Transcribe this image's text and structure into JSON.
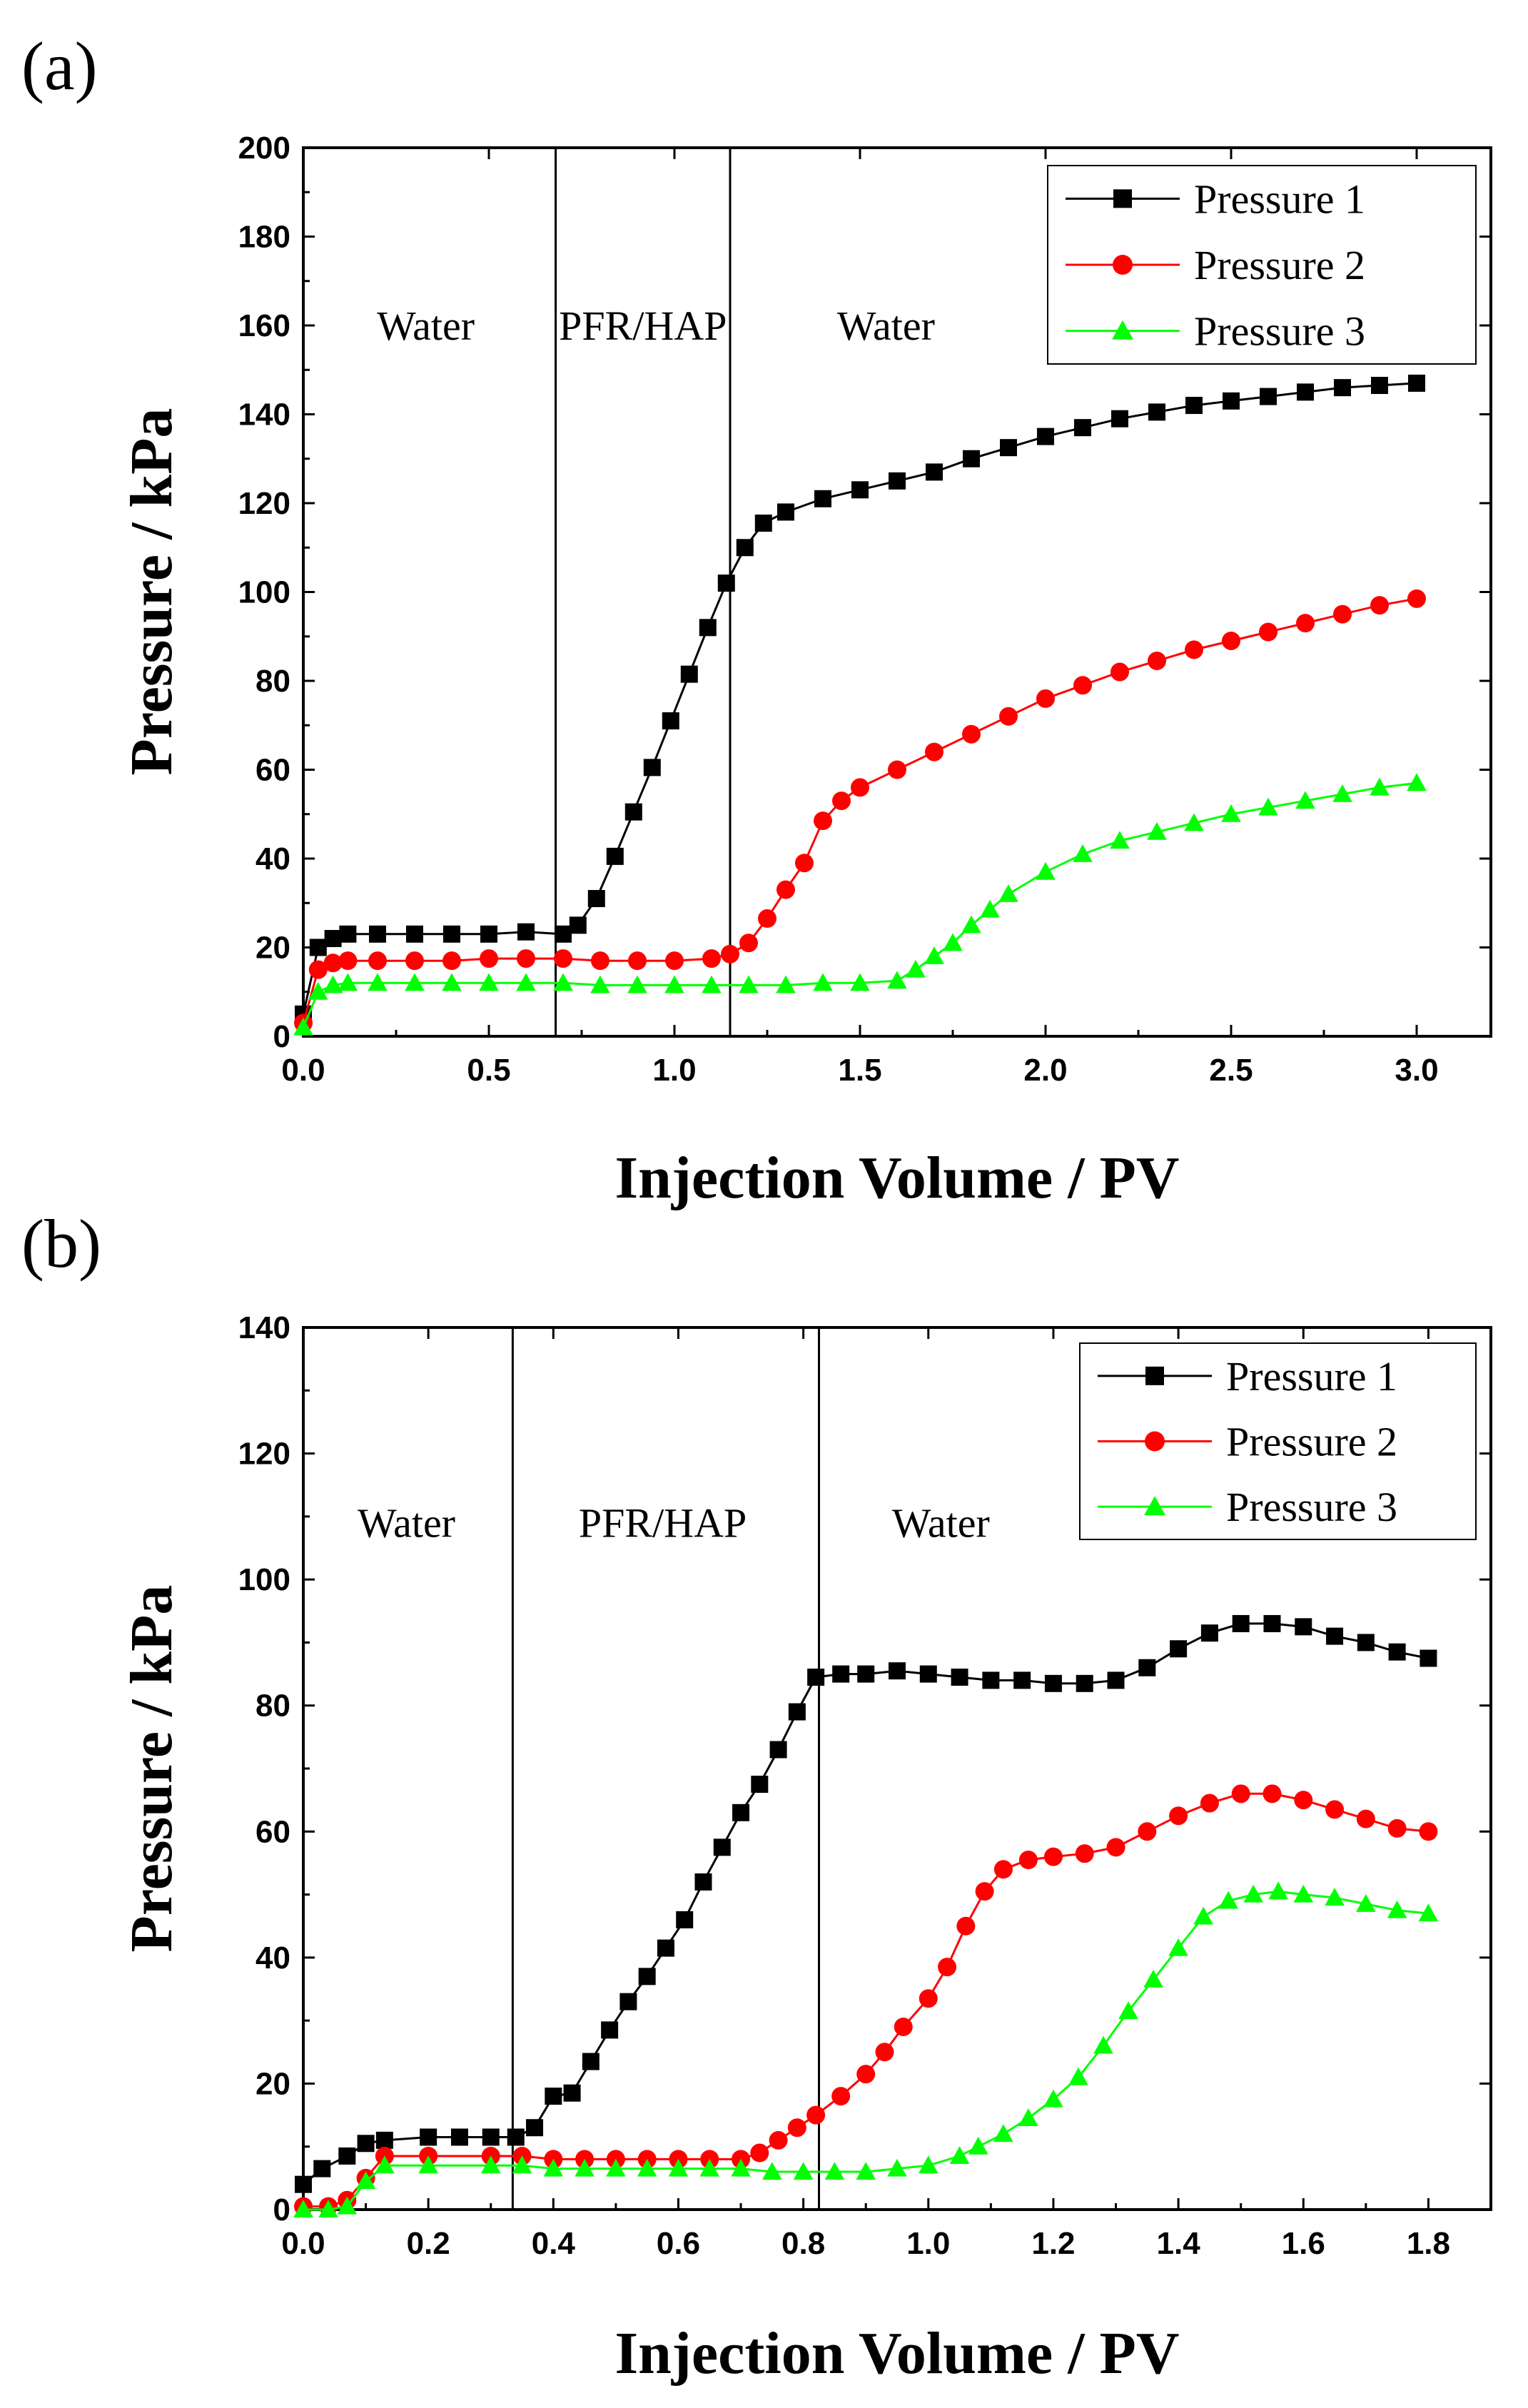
{
  "chart_data": [
    {
      "type": "line",
      "panel_label": "(a)",
      "xlabel": "Injection Volume / PV",
      "ylabel": "Pressure / kPa",
      "xlim": [
        0,
        3.2
      ],
      "ylim": [
        0,
        200
      ],
      "xticks": [
        0.0,
        0.5,
        1.0,
        1.5,
        2.0,
        2.5,
        3.0
      ],
      "xtick_labels": [
        "0.0",
        "0.5",
        "1.0",
        "1.5",
        "2.0",
        "2.5",
        "3.0"
      ],
      "yticks": [
        0,
        20,
        40,
        60,
        80,
        100,
        120,
        140,
        160,
        180,
        200
      ],
      "ytick_labels": [
        "0",
        "20",
        "40",
        "60",
        "80",
        "100",
        "120",
        "140",
        "160",
        "180",
        "200"
      ],
      "vlines": [
        0.68,
        1.15
      ],
      "regions": [
        {
          "label": "Water",
          "x": 0.33
        },
        {
          "label": "PFR/HAP",
          "x": 0.915
        },
        {
          "label": "Water",
          "x": 1.57
        }
      ],
      "region_label_y": 160,
      "legend_position": "top-right",
      "series": [
        {
          "name": "Pressure 1",
          "color": "#000000",
          "marker": "square",
          "points": [
            [
              0,
              5
            ],
            [
              0.04,
              20
            ],
            [
              0.08,
              22
            ],
            [
              0.12,
              23
            ],
            [
              0.2,
              23
            ],
            [
              0.3,
              23
            ],
            [
              0.4,
              23
            ],
            [
              0.5,
              23
            ],
            [
              0.6,
              23.5
            ],
            [
              0.7,
              23
            ],
            [
              0.74,
              25
            ],
            [
              0.79,
              31
            ],
            [
              0.84,
              40.5
            ],
            [
              0.89,
              50.5
            ],
            [
              0.94,
              60.5
            ],
            [
              0.99,
              71
            ],
            [
              1.04,
              81.5
            ],
            [
              1.09,
              92
            ],
            [
              1.14,
              102
            ],
            [
              1.19,
              110
            ],
            [
              1.24,
              115.5
            ],
            [
              1.3,
              118
            ],
            [
              1.4,
              121
            ],
            [
              1.5,
              123
            ],
            [
              1.6,
              125
            ],
            [
              1.7,
              127
            ],
            [
              1.8,
              130
            ],
            [
              1.9,
              132.5
            ],
            [
              2.0,
              135
            ],
            [
              2.1,
              137
            ],
            [
              2.2,
              139
            ],
            [
              2.3,
              140.5
            ],
            [
              2.4,
              142
            ],
            [
              2.5,
              143
            ],
            [
              2.6,
              144
            ],
            [
              2.7,
              145
            ],
            [
              2.8,
              146
            ],
            [
              2.9,
              146.5
            ],
            [
              3.0,
              147
            ]
          ]
        },
        {
          "name": "Pressure 2",
          "color": "#ff0000",
          "marker": "circle",
          "points": [
            [
              0,
              3
            ],
            [
              0.04,
              15
            ],
            [
              0.08,
              16.5
            ],
            [
              0.12,
              17
            ],
            [
              0.2,
              17
            ],
            [
              0.3,
              17
            ],
            [
              0.4,
              17
            ],
            [
              0.5,
              17.5
            ],
            [
              0.6,
              17.5
            ],
            [
              0.7,
              17.5
            ],
            [
              0.8,
              17
            ],
            [
              0.9,
              17
            ],
            [
              1.0,
              17
            ],
            [
              1.1,
              17.5
            ],
            [
              1.15,
              18.5
            ],
            [
              1.2,
              21
            ],
            [
              1.25,
              26.5
            ],
            [
              1.3,
              33
            ],
            [
              1.35,
              39
            ],
            [
              1.4,
              48.5
            ],
            [
              1.45,
              53
            ],
            [
              1.5,
              56
            ],
            [
              1.6,
              60
            ],
            [
              1.7,
              64
            ],
            [
              1.8,
              68
            ],
            [
              1.9,
              72
            ],
            [
              2.0,
              76
            ],
            [
              2.1,
              79
            ],
            [
              2.2,
              82
            ],
            [
              2.3,
              84.5
            ],
            [
              2.4,
              87
            ],
            [
              2.5,
              89
            ],
            [
              2.6,
              91
            ],
            [
              2.7,
              93
            ],
            [
              2.8,
              95
            ],
            [
              2.9,
              97
            ],
            [
              3.0,
              98.5
            ]
          ]
        },
        {
          "name": "Pressure 3",
          "color": "#00ff00",
          "marker": "triangle",
          "points": [
            [
              0,
              2
            ],
            [
              0.04,
              10
            ],
            [
              0.08,
              11.5
            ],
            [
              0.12,
              12
            ],
            [
              0.2,
              12
            ],
            [
              0.3,
              12
            ],
            [
              0.4,
              12
            ],
            [
              0.5,
              12
            ],
            [
              0.6,
              12
            ],
            [
              0.7,
              12
            ],
            [
              0.8,
              11.5
            ],
            [
              0.9,
              11.5
            ],
            [
              1.0,
              11.5
            ],
            [
              1.1,
              11.5
            ],
            [
              1.2,
              11.5
            ],
            [
              1.3,
              11.5
            ],
            [
              1.4,
              12
            ],
            [
              1.5,
              12
            ],
            [
              1.6,
              12.5
            ],
            [
              1.65,
              15
            ],
            [
              1.7,
              18
            ],
            [
              1.75,
              21
            ],
            [
              1.8,
              25
            ],
            [
              1.85,
              28.5
            ],
            [
              1.9,
              32
            ],
            [
              2.0,
              37
            ],
            [
              2.1,
              41
            ],
            [
              2.2,
              44
            ],
            [
              2.3,
              46
            ],
            [
              2.4,
              48
            ],
            [
              2.5,
              50
            ],
            [
              2.6,
              51.5
            ],
            [
              2.7,
              53
            ],
            [
              2.8,
              54.5
            ],
            [
              2.9,
              56
            ],
            [
              3.0,
              57
            ]
          ]
        }
      ]
    },
    {
      "type": "line",
      "panel_label": "(b)",
      "xlabel": "Injection Volume / PV",
      "ylabel": "Pressure / kPa",
      "xlim": [
        0,
        1.9
      ],
      "ylim": [
        0,
        140
      ],
      "xticks": [
        0.0,
        0.2,
        0.4,
        0.6,
        0.8,
        1.0,
        1.2,
        1.4,
        1.6,
        1.8
      ],
      "xtick_labels": [
        "0.0",
        "0.2",
        "0.4",
        "0.6",
        "0.8",
        "1.0",
        "1.2",
        "1.4",
        "1.6",
        "1.8"
      ],
      "yticks": [
        0,
        20,
        40,
        60,
        80,
        100,
        120,
        140
      ],
      "ytick_labels": [
        "0",
        "20",
        "40",
        "60",
        "80",
        "100",
        "120",
        "140"
      ],
      "vlines": [
        0.335,
        0.825
      ],
      "regions": [
        {
          "label": "Water",
          "x": 0.165
        },
        {
          "label": "PFR/HAP",
          "x": 0.575
        },
        {
          "label": "Water",
          "x": 1.02
        }
      ],
      "region_label_y": 109,
      "legend_position": "top-right",
      "series": [
        {
          "name": "Pressure 1",
          "color": "#000000",
          "marker": "square",
          "points": [
            [
              0,
              4
            ],
            [
              0.03,
              6.5
            ],
            [
              0.07,
              8.5
            ],
            [
              0.1,
              10.5
            ],
            [
              0.13,
              11
            ],
            [
              0.2,
              11.5
            ],
            [
              0.25,
              11.5
            ],
            [
              0.3,
              11.5
            ],
            [
              0.34,
              11.5
            ],
            [
              0.37,
              13
            ],
            [
              0.4,
              18
            ],
            [
              0.43,
              18.5
            ],
            [
              0.46,
              23.5
            ],
            [
              0.49,
              28.5
            ],
            [
              0.52,
              33
            ],
            [
              0.55,
              37
            ],
            [
              0.58,
              41.5
            ],
            [
              0.61,
              46
            ],
            [
              0.64,
              52
            ],
            [
              0.67,
              57.5
            ],
            [
              0.7,
              63
            ],
            [
              0.73,
              67.5
            ],
            [
              0.76,
              73
            ],
            [
              0.79,
              79
            ],
            [
              0.82,
              84.5
            ],
            [
              0.86,
              85
            ],
            [
              0.9,
              85
            ],
            [
              0.95,
              85.5
            ],
            [
              1.0,
              85
            ],
            [
              1.05,
              84.5
            ],
            [
              1.1,
              84
            ],
            [
              1.15,
              84
            ],
            [
              1.2,
              83.5
            ],
            [
              1.25,
              83.5
            ],
            [
              1.3,
              84
            ],
            [
              1.35,
              86
            ],
            [
              1.4,
              89
            ],
            [
              1.45,
              91.5
            ],
            [
              1.5,
              93
            ],
            [
              1.55,
              93
            ],
            [
              1.6,
              92.5
            ],
            [
              1.65,
              91
            ],
            [
              1.7,
              90
            ],
            [
              1.75,
              88.5
            ],
            [
              1.8,
              87.5
            ]
          ]
        },
        {
          "name": "Pressure 2",
          "color": "#ff0000",
          "marker": "circle",
          "points": [
            [
              0,
              0.5
            ],
            [
              0.04,
              0.5
            ],
            [
              0.07,
              1.5
            ],
            [
              0.1,
              5
            ],
            [
              0.13,
              8.5
            ],
            [
              0.2,
              8.5
            ],
            [
              0.3,
              8.5
            ],
            [
              0.35,
              8.5
            ],
            [
              0.4,
              8
            ],
            [
              0.45,
              8
            ],
            [
              0.5,
              8
            ],
            [
              0.55,
              8
            ],
            [
              0.6,
              8
            ],
            [
              0.65,
              8
            ],
            [
              0.7,
              8
            ],
            [
              0.73,
              9
            ],
            [
              0.76,
              11
            ],
            [
              0.79,
              13
            ],
            [
              0.82,
              15
            ],
            [
              0.86,
              18
            ],
            [
              0.9,
              21.5
            ],
            [
              0.93,
              25
            ],
            [
              0.96,
              29
            ],
            [
              1.0,
              33.5
            ],
            [
              1.03,
              38.5
            ],
            [
              1.06,
              45
            ],
            [
              1.09,
              50.5
            ],
            [
              1.12,
              54
            ],
            [
              1.16,
              55.5
            ],
            [
              1.2,
              56
            ],
            [
              1.25,
              56.5
            ],
            [
              1.3,
              57.5
            ],
            [
              1.35,
              60
            ],
            [
              1.4,
              62.5
            ],
            [
              1.45,
              64.5
            ],
            [
              1.5,
              66
            ],
            [
              1.55,
              66
            ],
            [
              1.6,
              65
            ],
            [
              1.65,
              63.5
            ],
            [
              1.7,
              62
            ],
            [
              1.75,
              60.5
            ],
            [
              1.8,
              60
            ]
          ]
        },
        {
          "name": "Pressure 3",
          "color": "#00ff00",
          "marker": "triangle",
          "points": [
            [
              0,
              0
            ],
            [
              0.04,
              0
            ],
            [
              0.07,
              0.5
            ],
            [
              0.1,
              4.5
            ],
            [
              0.13,
              7
            ],
            [
              0.2,
              7
            ],
            [
              0.3,
              7
            ],
            [
              0.35,
              7
            ],
            [
              0.4,
              6.5
            ],
            [
              0.45,
              6.5
            ],
            [
              0.5,
              6.5
            ],
            [
              0.55,
              6.5
            ],
            [
              0.6,
              6.5
            ],
            [
              0.65,
              6.5
            ],
            [
              0.7,
              6.5
            ],
            [
              0.75,
              6
            ],
            [
              0.8,
              6
            ],
            [
              0.85,
              6
            ],
            [
              0.9,
              6
            ],
            [
              0.95,
              6.5
            ],
            [
              1.0,
              7
            ],
            [
              1.05,
              8.5
            ],
            [
              1.08,
              10
            ],
            [
              1.12,
              12
            ],
            [
              1.16,
              14.5
            ],
            [
              1.2,
              17.5
            ],
            [
              1.24,
              21
            ],
            [
              1.28,
              26
            ],
            [
              1.32,
              31.5
            ],
            [
              1.36,
              36.5
            ],
            [
              1.4,
              41.5
            ],
            [
              1.44,
              46.5
            ],
            [
              1.48,
              49
            ],
            [
              1.52,
              50
            ],
            [
              1.56,
              50.5
            ],
            [
              1.6,
              50
            ],
            [
              1.65,
              49.5
            ],
            [
              1.7,
              48.5
            ],
            [
              1.75,
              47.5
            ],
            [
              1.8,
              47
            ]
          ]
        }
      ]
    }
  ]
}
